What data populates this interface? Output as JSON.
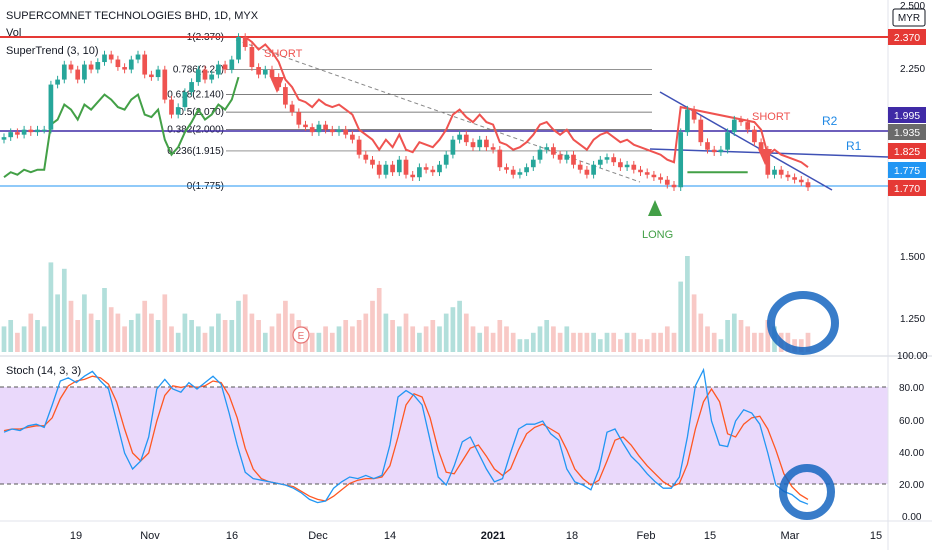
{
  "header": {
    "symbol_line": "SUPERCOMNET TECHNOLOGIES BHD, 1D, MYX",
    "vol_label": "Vol",
    "supertrend_label": "SuperTrend (3, 10)",
    "stoch_label": "Stoch (14, 3, 3)",
    "currency": "MYR"
  },
  "colors": {
    "up": "#26a69a",
    "down": "#ef5350",
    "resistance": "#e53935",
    "trend_line": "#3f51b5",
    "supertrend_up": "#43a047",
    "supertrend_down": "#ef5350",
    "stoch_k": "#2196f3",
    "stoch_d": "#ff5722",
    "stoch_band": "#e7d9fb",
    "circle": "#1565c0"
  },
  "chart_data": [
    {
      "type": "candlestick",
      "x_tick_labels": [
        "19",
        "Nov",
        "16",
        "Dec",
        "14",
        "2021",
        "18",
        "Feb",
        "15",
        "Mar",
        "15"
      ],
      "y_tick_labels": [
        "2.500",
        "2.250",
        "1.500",
        "1.250"
      ],
      "price_labels": [
        {
          "text": "2.370",
          "color": "#e53935"
        },
        {
          "text": "1.995",
          "color": "#3f2aa6"
        },
        {
          "text": "1.935",
          "color": "#6b6b6b"
        },
        {
          "text": "1.825",
          "color": "#e53935"
        },
        {
          "text": "1.775",
          "color": "#2196f3"
        },
        {
          "text": "1.770",
          "color": "#e53935"
        }
      ],
      "fib_levels": [
        {
          "ratio": "1",
          "price": 2.37,
          "label": "1(2.370)"
        },
        {
          "ratio": "0.786",
          "price": 2.24,
          "label": "0.786(2.24)"
        },
        {
          "ratio": "0.618",
          "price": 2.14,
          "label": "0.618(2.140)"
        },
        {
          "ratio": "0.5",
          "price": 2.07,
          "label": "0.5(2.070)"
        },
        {
          "ratio": "0.382",
          "price": 2.0,
          "label": "0.382(2.000)"
        },
        {
          "ratio": "0.236",
          "price": 1.915,
          "label": "0.236(1.915)"
        },
        {
          "ratio": "0",
          "price": 1.775,
          "label": "0(1.775)"
        }
      ],
      "annotations": [
        "SHORT",
        "SHORT",
        "LONG",
        "R2",
        "R1",
        "E"
      ],
      "close_prices": [
        1.97,
        1.99,
        1.98,
        2.0,
        1.99,
        2.0,
        2.0,
        2.18,
        2.2,
        2.26,
        2.24,
        2.2,
        2.26,
        2.24,
        2.27,
        2.3,
        2.28,
        2.25,
        2.24,
        2.28,
        2.3,
        2.22,
        2.21,
        2.24,
        2.12,
        2.06,
        2.09,
        2.15,
        2.19,
        2.24,
        2.2,
        2.22,
        2.26,
        2.24,
        2.28,
        2.37,
        2.33,
        2.25,
        2.22,
        2.24,
        2.21,
        2.17,
        2.1,
        2.07,
        2.02,
        2.01,
        1.99,
        2.02,
        2.0,
        1.99,
        2.0,
        1.98,
        1.96,
        1.9,
        1.88,
        1.86,
        1.82,
        1.86,
        1.83,
        1.88,
        1.82,
        1.81,
        1.85,
        1.84,
        1.83,
        1.86,
        1.9,
        1.96,
        1.98,
        1.95,
        1.93,
        1.96,
        1.93,
        1.92,
        1.85,
        1.84,
        1.82,
        1.83,
        1.85,
        1.88,
        1.92,
        1.93,
        1.9,
        1.88,
        1.9,
        1.86,
        1.84,
        1.82,
        1.86,
        1.88,
        1.89,
        1.87,
        1.85,
        1.86,
        1.84,
        1.83,
        1.82,
        1.81,
        1.8,
        1.78,
        1.77,
        1.99,
        2.08,
        2.04,
        1.95,
        1.92,
        1.91,
        1.92,
        1.99,
        2.04,
        2.03,
        2.0,
        1.95,
        1.92,
        1.82,
        1.84,
        1.82,
        1.81,
        1.8,
        1.79,
        1.77
      ]
    },
    {
      "type": "bar",
      "title": "Vol",
      "volumes": [
        4,
        5,
        3,
        4,
        6,
        5,
        4,
        14,
        9,
        13,
        8,
        5,
        9,
        6,
        5,
        10,
        7,
        6,
        4,
        5,
        6,
        8,
        6,
        5,
        9,
        4,
        3,
        6,
        5,
        4,
        3,
        4,
        6,
        5,
        5,
        8,
        9,
        6,
        5,
        3,
        4,
        6,
        8,
        6,
        5,
        4,
        3,
        3,
        4,
        3,
        4,
        5,
        4,
        5,
        6,
        8,
        10,
        6,
        5,
        4,
        6,
        4,
        3,
        4,
        5,
        4,
        6,
        7,
        8,
        6,
        4,
        3,
        4,
        3,
        5,
        4,
        3,
        2,
        2,
        3,
        4,
        5,
        4,
        3,
        4,
        3,
        3,
        3,
        3,
        2,
        3,
        3,
        2,
        3,
        3,
        2,
        2,
        3,
        3,
        4,
        3,
        11,
        15,
        9,
        6,
        4,
        3,
        2,
        5,
        6,
        5,
        4,
        3,
        3,
        5,
        4,
        3,
        3,
        2,
        2,
        3
      ]
    },
    {
      "type": "line",
      "title": "Stoch (14, 3, 3)",
      "y_tick_labels": [
        "100.00",
        "80.00",
        "60.00",
        "40.00",
        "20.00",
        "0.00"
      ],
      "ylim": [
        0,
        100
      ],
      "bands": [
        20,
        80
      ],
      "series": [
        {
          "name": "%K",
          "values": [
            53,
            55,
            54,
            57,
            58,
            56,
            70,
            85,
            87,
            84,
            88,
            91,
            85,
            80,
            60,
            40,
            30,
            35,
            50,
            80,
            86,
            80,
            78,
            84,
            80,
            84,
            88,
            83,
            65,
            45,
            28,
            24,
            23,
            22,
            21,
            20,
            18,
            15,
            11,
            9,
            10,
            18,
            22,
            25,
            24,
            26,
            24,
            26,
            45,
            75,
            79,
            76,
            70,
            48,
            25,
            20,
            32,
            47,
            50,
            40,
            30,
            22,
            24,
            40,
            55,
            58,
            58,
            60,
            52,
            48,
            30,
            22,
            20,
            17,
            30,
            53,
            55,
            46,
            38,
            33,
            27,
            22,
            18,
            18,
            25,
            50,
            82,
            92,
            60,
            45,
            44,
            60,
            67,
            65,
            58,
            40,
            20,
            16,
            14,
            10,
            8
          ]
        },
        {
          "name": "%D",
          "values": [
            54,
            55,
            55,
            56,
            57,
            57,
            62,
            74,
            82,
            85,
            86,
            88,
            87,
            83,
            72,
            55,
            40,
            35,
            40,
            60,
            76,
            82,
            81,
            82,
            81,
            82,
            85,
            84,
            76,
            62,
            43,
            30,
            24,
            22,
            21,
            20,
            19,
            16,
            13,
            11,
            10,
            13,
            17,
            21,
            23,
            24,
            24,
            25,
            32,
            50,
            70,
            77,
            75,
            62,
            42,
            28,
            27,
            35,
            43,
            45,
            38,
            30,
            26,
            30,
            42,
            52,
            56,
            58,
            55,
            52,
            42,
            30,
            24,
            20,
            23,
            35,
            48,
            50,
            45,
            38,
            32,
            27,
            22,
            19,
            21,
            33,
            55,
            72,
            80,
            72,
            52,
            50,
            58,
            62,
            63,
            55,
            42,
            27,
            19,
            14,
            11
          ]
        }
      ]
    }
  ]
}
